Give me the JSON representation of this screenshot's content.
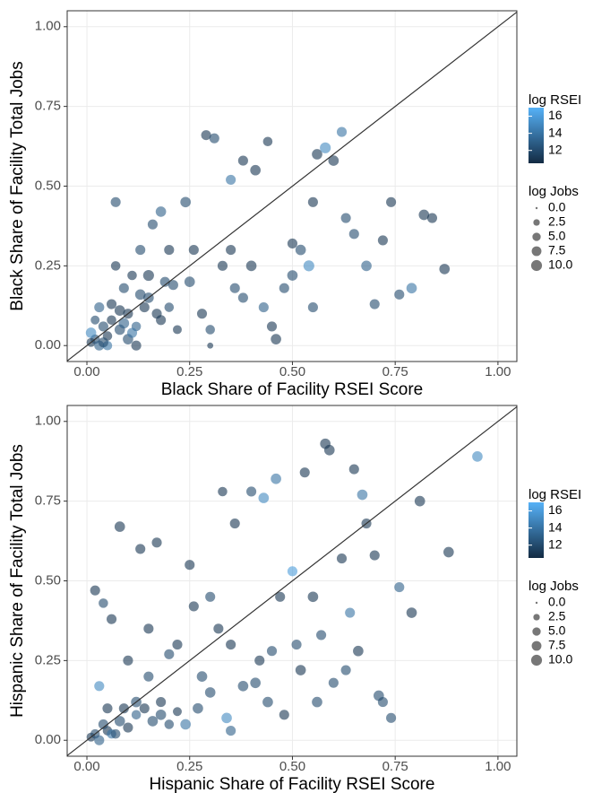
{
  "chart_data": [
    {
      "type": "scatter",
      "x_label": "Black Share of Facility RSEI Score",
      "y_label": "Black Share of Facility Total Jobs",
      "xlim": [
        -0.048,
        1.046
      ],
      "ylim": [
        -0.05,
        1.05
      ],
      "xticks": [
        {
          "value": 0,
          "label": "0.00"
        },
        {
          "value": 0.25,
          "label": "0.25"
        },
        {
          "value": 0.5,
          "label": "0.50"
        },
        {
          "value": 0.75,
          "label": "0.75"
        },
        {
          "value": 1,
          "label": "1.00"
        }
      ],
      "yticks": [
        {
          "value": 0,
          "label": "0.00"
        },
        {
          "value": 0.25,
          "label": "0.25"
        },
        {
          "value": 0.5,
          "label": "0.50"
        },
        {
          "value": 0.75,
          "label": "0.75"
        },
        {
          "value": 1,
          "label": "1.00"
        }
      ],
      "grid": true,
      "color_legend": {
        "title": "log RSEI",
        "low": "#132B43",
        "high": "#56B1F7",
        "lim": [
          10.5,
          17
        ],
        "ticks": [
          12,
          14,
          16
        ]
      },
      "size_legend": {
        "title": "log Jobs",
        "lim": [
          0,
          10.5
        ],
        "ticks": [
          {
            "value": 0,
            "label": "0.0"
          },
          {
            "value": 2.5,
            "label": "2.5"
          },
          {
            "value": 5,
            "label": "5.0"
          },
          {
            "value": 7.5,
            "label": "7.5"
          },
          {
            "value": 10,
            "label": "10.0"
          }
        ]
      },
      "x": [
        0.01,
        0.02,
        0.03,
        0.05,
        0.04,
        0.06,
        0.08,
        0.1,
        0.12,
        0.14,
        0.15,
        0.18,
        0.2,
        0.22,
        0.09,
        0.11,
        0.13,
        0.07,
        0.03,
        0.02,
        0.16,
        0.18,
        0.07,
        0.2,
        0.25,
        0.28,
        0.3,
        0.29,
        0.31,
        0.35,
        0.38,
        0.4,
        0.41,
        0.44,
        0.45,
        0.48,
        0.5,
        0.52,
        0.55,
        0.56,
        0.58,
        0.6,
        0.62,
        0.63,
        0.65,
        0.68,
        0.7,
        0.72,
        0.74,
        0.76,
        0.79,
        0.82,
        0.84,
        0.87,
        0.55,
        0.46,
        0.36,
        0.33,
        0.26,
        0.24,
        0.15,
        0.1,
        0.05,
        0.12,
        0.3,
        0.54,
        0.5,
        0.43,
        0.38,
        0.35,
        0.01,
        0.04,
        0.06,
        0.09,
        0.13,
        0.17,
        0.21,
        0.08,
        0.11,
        0.19
      ],
      "y": [
        0.01,
        0.02,
        0.0,
        0.03,
        0.06,
        0.08,
        0.05,
        0.1,
        0.06,
        0.12,
        0.15,
        0.08,
        0.12,
        0.05,
        0.18,
        0.22,
        0.3,
        0.25,
        0.12,
        0.08,
        0.38,
        0.42,
        0.45,
        0.3,
        0.2,
        0.1,
        0.05,
        0.66,
        0.65,
        0.3,
        0.15,
        0.25,
        0.55,
        0.64,
        0.06,
        0.18,
        0.22,
        0.3,
        0.12,
        0.6,
        0.62,
        0.58,
        0.67,
        0.4,
        0.35,
        0.25,
        0.13,
        0.33,
        0.45,
        0.16,
        0.18,
        0.41,
        0.4,
        0.24,
        0.45,
        0.02,
        0.18,
        0.25,
        0.3,
        0.45,
        0.22,
        0.02,
        0.0,
        0.0,
        0.0,
        0.25,
        0.32,
        0.12,
        0.58,
        0.52,
        0.04,
        0.01,
        0.13,
        0.07,
        0.16,
        0.1,
        0.19,
        0.11,
        0.04,
        0.2
      ],
      "log_jobs": [
        6,
        7,
        8,
        7,
        8,
        7,
        9,
        8,
        7,
        8,
        9,
        8,
        7,
        6,
        8,
        7,
        8,
        7,
        8,
        6,
        8,
        9,
        8,
        8,
        9,
        8,
        7,
        8,
        8,
        8,
        8,
        9,
        9,
        7,
        8,
        8,
        9,
        9,
        8,
        9,
        10,
        9,
        8,
        8,
        8,
        9,
        8,
        8,
        8,
        8,
        9,
        9,
        8,
        9,
        8,
        9,
        8,
        8,
        8,
        9,
        10,
        9,
        7,
        8,
        2,
        10,
        8,
        8,
        8,
        8,
        9,
        8,
        8,
        9,
        9,
        8,
        8,
        9,
        8,
        8
      ],
      "log_rsei": [
        11,
        12,
        13,
        11,
        12,
        11,
        12,
        11,
        13,
        11,
        12,
        11,
        12,
        11,
        12,
        11,
        12,
        11,
        13,
        12,
        12,
        13,
        12,
        11,
        12,
        11,
        12,
        11,
        12,
        11,
        12,
        11,
        11,
        11,
        11,
        12,
        12,
        12,
        12,
        11,
        15,
        11,
        14,
        12,
        12,
        13,
        12,
        11,
        11,
        12,
        14,
        11,
        11,
        11,
        11,
        11,
        12,
        11,
        11,
        12,
        11,
        12,
        14,
        11,
        11,
        15,
        11,
        13,
        11,
        14,
        15,
        12,
        11,
        13,
        12,
        11,
        12,
        11,
        14,
        12
      ]
    },
    {
      "type": "scatter",
      "x_label": "Hispanic Share of Facility RSEI Score",
      "y_label": "Hispanic Share of Facility Total Jobs",
      "xlim": [
        -0.048,
        1.046
      ],
      "ylim": [
        -0.05,
        1.05
      ],
      "xticks": [
        {
          "value": 0,
          "label": "0.00"
        },
        {
          "value": 0.25,
          "label": "0.25"
        },
        {
          "value": 0.5,
          "label": "0.50"
        },
        {
          "value": 0.75,
          "label": "0.75"
        },
        {
          "value": 1,
          "label": "1.00"
        }
      ],
      "yticks": [
        {
          "value": 0,
          "label": "0.00"
        },
        {
          "value": 0.25,
          "label": "0.25"
        },
        {
          "value": 0.5,
          "label": "0.50"
        },
        {
          "value": 0.75,
          "label": "0.75"
        },
        {
          "value": 1,
          "label": "1.00"
        }
      ],
      "grid": true,
      "color_legend": {
        "title": "log RSEI",
        "low": "#132B43",
        "high": "#56B1F7",
        "lim": [
          10.5,
          17
        ],
        "ticks": [
          12,
          14,
          16
        ]
      },
      "size_legend": {
        "title": "log Jobs",
        "lim": [
          0,
          10.5
        ],
        "ticks": [
          {
            "value": 0,
            "label": "0.0"
          },
          {
            "value": 2.5,
            "label": "2.5"
          },
          {
            "value": 5,
            "label": "5.0"
          },
          {
            "value": 7.5,
            "label": "7.5"
          },
          {
            "value": 10,
            "label": "10.0"
          }
        ]
      },
      "x": [
        0.01,
        0.02,
        0.03,
        0.05,
        0.04,
        0.06,
        0.08,
        0.1,
        0.12,
        0.14,
        0.16,
        0.18,
        0.2,
        0.22,
        0.03,
        0.08,
        0.13,
        0.02,
        0.04,
        0.06,
        0.15,
        0.17,
        0.25,
        0.28,
        0.3,
        0.33,
        0.35,
        0.36,
        0.4,
        0.42,
        0.43,
        0.44,
        0.46,
        0.47,
        0.5,
        0.51,
        0.53,
        0.55,
        0.58,
        0.59,
        0.62,
        0.63,
        0.65,
        0.67,
        0.68,
        0.7,
        0.72,
        0.74,
        0.76,
        0.79,
        0.81,
        0.88,
        0.95,
        0.24,
        0.2,
        0.1,
        0.12,
        0.26,
        0.32,
        0.38,
        0.45,
        0.52,
        0.56,
        0.64,
        0.3,
        0.22,
        0.18,
        0.09,
        0.07,
        0.27,
        0.35,
        0.41,
        0.48,
        0.6,
        0.66,
        0.71,
        0.05,
        0.15,
        0.34,
        0.57
      ],
      "y": [
        0.01,
        0.02,
        0.0,
        0.03,
        0.05,
        0.02,
        0.06,
        0.04,
        0.08,
        0.1,
        0.06,
        0.12,
        0.05,
        0.09,
        0.17,
        0.67,
        0.6,
        0.47,
        0.43,
        0.38,
        0.35,
        0.62,
        0.55,
        0.2,
        0.15,
        0.78,
        0.3,
        0.68,
        0.78,
        0.25,
        0.76,
        0.12,
        0.82,
        0.45,
        0.53,
        0.3,
        0.84,
        0.45,
        0.93,
        0.91,
        0.57,
        0.22,
        0.85,
        0.77,
        0.68,
        0.58,
        0.12,
        0.07,
        0.48,
        0.4,
        0.75,
        0.59,
        0.89,
        0.05,
        0.27,
        0.25,
        0.12,
        0.42,
        0.35,
        0.17,
        0.28,
        0.22,
        0.12,
        0.4,
        0.45,
        0.3,
        0.08,
        0.1,
        0.02,
        0.1,
        0.03,
        0.18,
        0.08,
        0.18,
        0.28,
        0.14,
        0.1,
        0.2,
        0.07,
        0.33
      ],
      "log_jobs": [
        6,
        7,
        8,
        7,
        8,
        7,
        9,
        8,
        7,
        8,
        9,
        8,
        7,
        6,
        8,
        9,
        8,
        8,
        7,
        8,
        8,
        8,
        8,
        9,
        9,
        7,
        8,
        8,
        8,
        8,
        9,
        9,
        9,
        8,
        8,
        8,
        8,
        9,
        9,
        9,
        8,
        8,
        8,
        9,
        8,
        8,
        8,
        8,
        8,
        9,
        9,
        9,
        9,
        9,
        8,
        8,
        9,
        8,
        8,
        9,
        8,
        9,
        9,
        8,
        8,
        8,
        9,
        8,
        7,
        9,
        8,
        9,
        8,
        8,
        9,
        9,
        8,
        8,
        9,
        8
      ],
      "log_rsei": [
        11,
        12,
        13,
        11,
        12,
        14,
        12,
        11,
        13,
        11,
        12,
        11,
        12,
        11,
        15,
        11,
        11,
        11,
        12,
        11,
        11,
        11,
        11,
        12,
        12,
        11,
        11,
        11,
        12,
        11,
        15,
        12,
        14,
        11,
        16,
        12,
        11,
        11,
        11,
        11,
        11,
        12,
        11,
        14,
        11,
        11,
        12,
        12,
        13,
        11,
        11,
        11,
        15,
        14,
        12,
        11,
        12,
        11,
        11,
        12,
        12,
        11,
        12,
        14,
        12,
        11,
        12,
        11,
        12,
        12,
        13,
        12,
        11,
        12,
        11,
        12,
        11,
        12,
        15,
        12
      ]
    }
  ]
}
